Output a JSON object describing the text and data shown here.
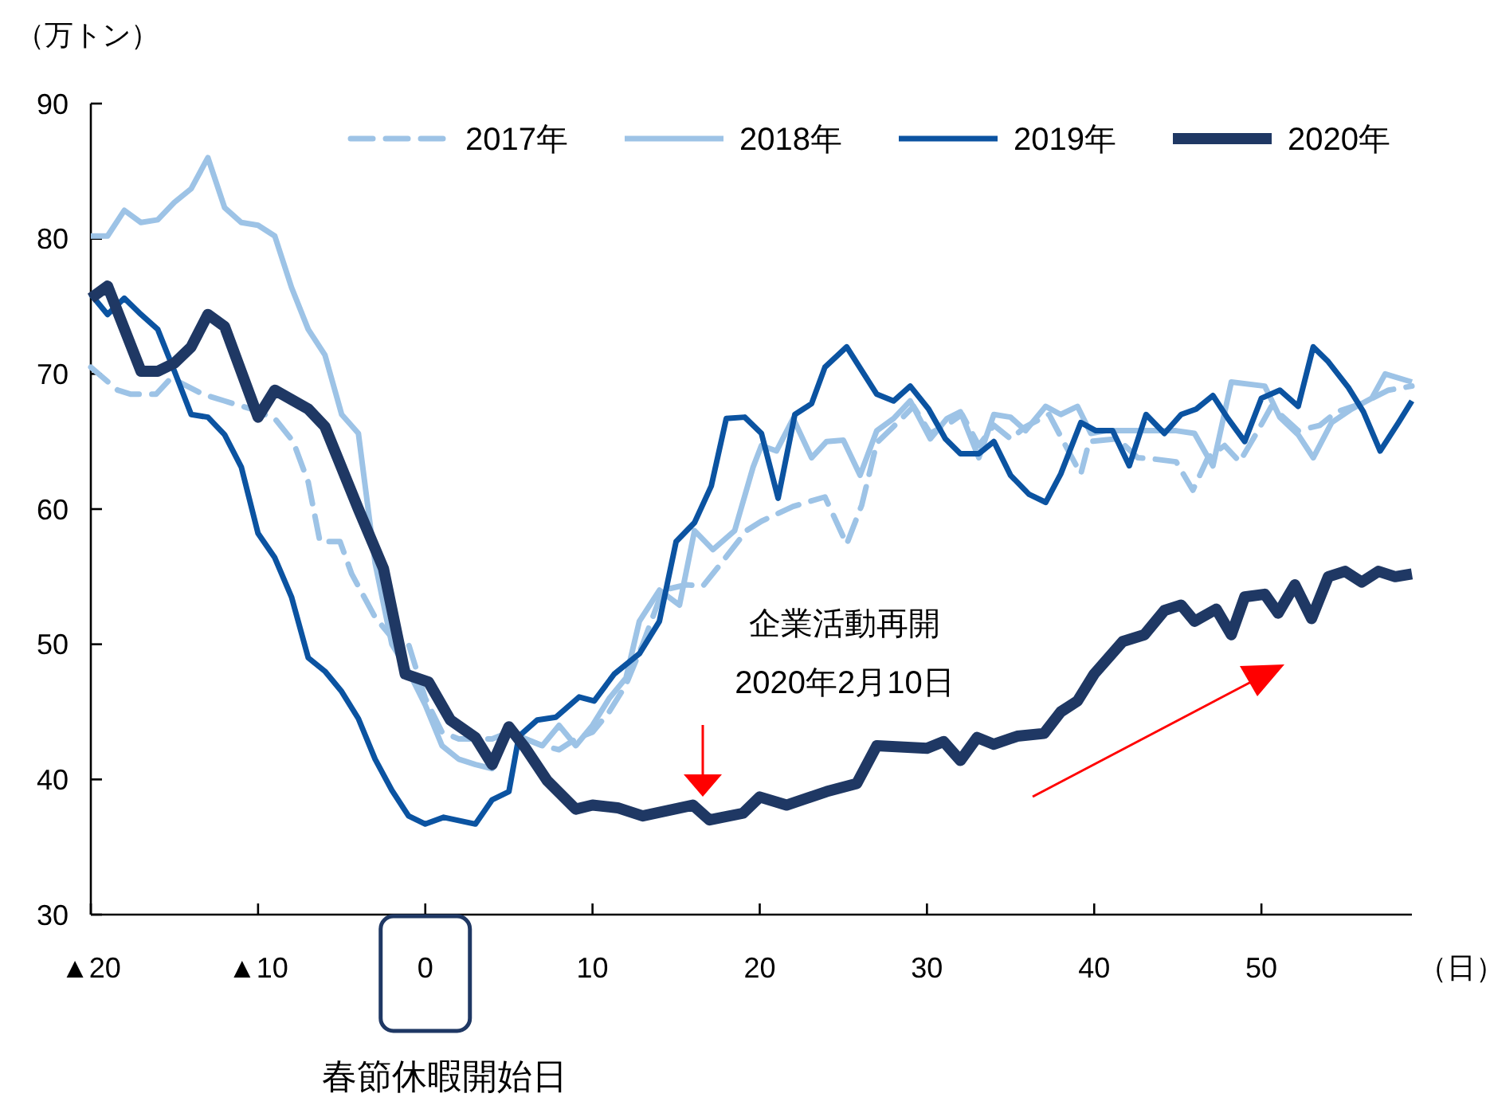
{
  "chart_data": {
    "type": "line",
    "ylabel": "（万トン）",
    "xlabel": "（日）",
    "xlim": [
      -20,
      59
    ],
    "ylim": [
      30,
      90
    ],
    "xticks": [
      {
        "value": -20,
        "label": "▲20"
      },
      {
        "value": -10,
        "label": "▲10"
      },
      0,
      10,
      20,
      30,
      40,
      50
    ],
    "yticks": [
      30,
      40,
      50,
      60,
      70,
      80,
      90
    ],
    "legend": "top right",
    "grid": false,
    "series": [
      {
        "name": "2017年",
        "color": "#9dc3e6",
        "line_style": "dashed",
        "x": [
          -20,
          -18.4,
          -17.6,
          -16.1,
          -15.2,
          -13.3,
          -12,
          -10.4,
          -9,
          -7.9,
          -7,
          -6.3,
          -5.1,
          -4.4,
          -3,
          -2,
          -1,
          0,
          1,
          2,
          3,
          4,
          5,
          6,
          7,
          8,
          9,
          10,
          11,
          12,
          13,
          14.2,
          15.6,
          16.6,
          17.7,
          19.2,
          20.1,
          22,
          23.9,
          25.2,
          26.1,
          27,
          28,
          29.2,
          30.2,
          31.4,
          32.1,
          33.1,
          34,
          35,
          35.9,
          37.3,
          38.2,
          39.2,
          39.7,
          41.4,
          42.6,
          43.6,
          44.9,
          45.9,
          46.8,
          47.8,
          48.7,
          49.7,
          50.6,
          52.2,
          53.5,
          54.5,
          56,
          57.6,
          59
        ],
        "values": [
          70.5,
          68.8,
          68.5,
          68.5,
          69.7,
          68.5,
          68,
          67.4,
          66.7,
          65,
          62,
          57.6,
          57.6,
          55.2,
          52,
          50.5,
          50,
          46,
          43.5,
          43,
          43,
          43,
          43.5,
          43,
          42.5,
          42.2,
          43,
          43.5,
          45,
          47,
          50,
          54,
          54.4,
          54.3,
          56,
          58.4,
          59.1,
          60.2,
          60.9,
          57.4,
          60.3,
          64.9,
          66.1,
          67.6,
          65.6,
          66.4,
          67,
          64.7,
          66.2,
          65.2,
          66.1,
          67,
          64.9,
          62.6,
          65,
          65.2,
          63.8,
          63.7,
          63.5,
          61.4,
          63.8,
          64.7,
          63.5,
          65.6,
          67.6,
          65.8,
          66.2,
          67.2,
          67.8,
          68.8,
          69.1
        ]
      },
      {
        "name": "2018年",
        "color": "#9dc3e6",
        "line_style": "solid",
        "x": [
          -20,
          -19,
          -18,
          -17,
          -16,
          -15,
          -14,
          -13,
          -12,
          -11,
          -10,
          -9,
          -8,
          -7,
          -6,
          -5,
          -4,
          -3,
          -2,
          -1,
          0,
          1,
          2,
          3,
          4,
          5,
          6,
          7,
          8,
          9,
          10,
          11,
          12,
          12.8,
          14,
          15.2,
          16.1,
          17.2,
          18.5,
          19.6,
          20.1,
          21,
          22,
          23.1,
          24,
          25,
          26,
          27,
          28,
          29,
          30.2,
          31.2,
          32,
          33.1,
          34,
          35,
          35.9,
          37.1,
          38,
          39,
          39.8,
          40.7,
          42.6,
          44.9,
          46,
          47.1,
          48.2,
          50.2,
          51.1,
          52.2,
          53.1,
          54.2,
          55.4,
          56.6,
          57.4,
          59
        ],
        "values": [
          80.2,
          80.2,
          82.1,
          81.2,
          81.4,
          82.7,
          83.7,
          86,
          82.3,
          81.2,
          81,
          80.2,
          76.4,
          73.3,
          71.4,
          67,
          65.6,
          56,
          50,
          48,
          45.5,
          42.5,
          41.5,
          41.1,
          40.8,
          43.5,
          43,
          42.5,
          44,
          42.5,
          44,
          46,
          47.5,
          51.7,
          54,
          52.9,
          58.4,
          57,
          58.4,
          63.1,
          64.7,
          64.3,
          66.7,
          63.8,
          65,
          65.1,
          62.5,
          65.8,
          66.7,
          68,
          65.2,
          66.7,
          67.2,
          63.8,
          67,
          66.8,
          65.8,
          67.6,
          67,
          67.6,
          65.6,
          65.8,
          65.8,
          65.8,
          65.6,
          63.2,
          69.4,
          69.1,
          66.8,
          65.5,
          63.8,
          66.4,
          67.4,
          68.2,
          70,
          69.4
        ]
      },
      {
        "name": "2019年",
        "color": "#0b53a1",
        "line_style": "solid",
        "x": [
          -20,
          -19,
          -18,
          -17,
          -16,
          -15,
          -14,
          -13,
          -12,
          -11,
          -10,
          -9,
          -8,
          -7,
          -6,
          -5,
          -4,
          -3,
          -2,
          -1,
          0,
          1.1,
          3,
          4,
          5,
          5.6,
          6.7,
          7.8,
          9.2,
          10.1,
          11.3,
          12.8,
          14,
          15,
          16.1,
          17.1,
          18,
          19.1,
          20.1,
          21.1,
          22.1,
          23.1,
          23.9,
          25.2,
          27,
          28,
          29,
          30.1,
          31.1,
          32,
          33.1,
          34,
          35,
          36.1,
          37.1,
          38,
          39.2,
          40.1,
          41.1,
          42.1,
          43.1,
          44.2,
          45.2,
          46.1,
          47.1,
          48,
          49,
          50,
          51.1,
          52.2,
          53.1,
          54,
          55.2,
          56.1,
          57.1,
          58.2,
          59
        ],
        "values": [
          75.9,
          74.4,
          75.6,
          74.4,
          73.3,
          70.2,
          67,
          66.8,
          65.5,
          63.1,
          58.2,
          56.4,
          53.5,
          49,
          48,
          46.5,
          44.5,
          41.5,
          39.2,
          37.3,
          36.7,
          37.2,
          36.7,
          38.5,
          39.1,
          43.2,
          44.4,
          44.6,
          46.1,
          45.8,
          47.8,
          49.3,
          51.7,
          57.6,
          59,
          61.7,
          66.7,
          66.8,
          65.6,
          60.8,
          67,
          67.8,
          70.5,
          72,
          68.5,
          68,
          69.1,
          67.4,
          65.2,
          64.1,
          64.1,
          65,
          62.5,
          61.1,
          60.5,
          62.6,
          66.4,
          65.8,
          65.8,
          63.2,
          67,
          65.6,
          67,
          67.4,
          68.4,
          66.7,
          65,
          68.2,
          68.8,
          67.6,
          72,
          70.9,
          69,
          67.2,
          64.3,
          66.4,
          68
        ]
      },
      {
        "name": "2020年",
        "color": "#1f3864",
        "line_style": "solid",
        "x": [
          -20,
          -19,
          -17,
          -16,
          -15,
          -14,
          -13,
          -12,
          -10,
          -9,
          -7,
          -6,
          -4,
          -2.5,
          -1.2,
          0.2,
          1.5,
          3,
          4,
          5,
          6,
          7.3,
          9,
          10,
          11.5,
          13,
          16,
          17,
          19,
          20,
          21.6,
          24,
          25.8,
          27,
          30,
          31,
          32,
          33,
          34,
          35.4,
          37,
          38,
          39,
          40,
          41.7,
          43,
          44.2,
          45.2,
          46,
          47.3,
          48.2,
          49,
          50.2,
          51,
          52,
          53,
          54,
          55,
          56,
          57,
          58,
          59
        ],
        "values": [
          75.6,
          76.5,
          70.2,
          70.2,
          70.8,
          72,
          74.4,
          73.5,
          66.8,
          68.8,
          67.4,
          66.1,
          60,
          55.6,
          47.8,
          47.2,
          44.4,
          43.1,
          41.1,
          43.9,
          42.3,
          39.9,
          37.8,
          38.1,
          37.9,
          37.3,
          38.1,
          37,
          37.5,
          38.7,
          38.1,
          39.1,
          39.7,
          42.5,
          42.3,
          42.8,
          41.4,
          43.1,
          42.6,
          43.2,
          43.4,
          45,
          45.8,
          47.8,
          50.2,
          50.7,
          52.5,
          52.9,
          51.7,
          52.6,
          50.7,
          53.5,
          53.7,
          52.3,
          54.4,
          51.9,
          55,
          55.4,
          54.6,
          55.4,
          55,
          55.2
        ]
      }
    ],
    "annotations": [
      "企業活動再開\n2020年2月10日",
      "春節休暇開始日"
    ]
  }
}
